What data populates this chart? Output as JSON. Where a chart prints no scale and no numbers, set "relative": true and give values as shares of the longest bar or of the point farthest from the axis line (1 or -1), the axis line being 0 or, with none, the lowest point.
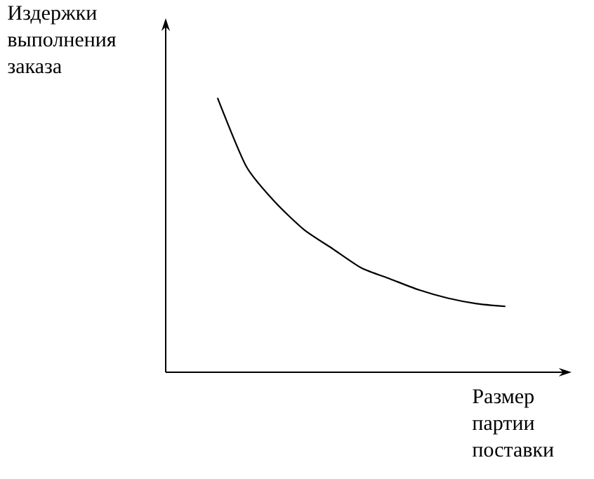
{
  "chart_data": {
    "type": "line",
    "relative": true,
    "xlabel": "Размер партии поставки",
    "ylabel": "Издержки выполнения заказа",
    "categories": [
      null,
      null,
      null,
      null,
      null,
      null,
      null,
      null,
      null,
      null,
      null
    ],
    "color": "#000000",
    "values": [
      1,
      0.75,
      0.62,
      0.52,
      0.45,
      0.38,
      0.34,
      0.3,
      0.27,
      0.25,
      0.24
    ]
  }
}
